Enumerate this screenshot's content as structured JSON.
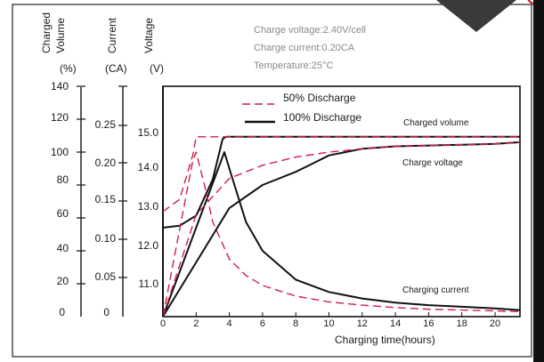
{
  "chart_data": {
    "type": "line",
    "xlabel": "Charging time(hours)",
    "x_ticks": [
      "0",
      "2",
      "4",
      "6",
      "8",
      "10",
      "12",
      "14",
      "16",
      "18",
      "20"
    ],
    "xlim": [
      0,
      21.5
    ],
    "axes": [
      {
        "id": "volume",
        "header_top": "Charged",
        "header_bottom": "Volume",
        "unit": "(%)",
        "ticks": [
          "140",
          "120",
          "100",
          "80",
          "60",
          "40",
          "20",
          "0"
        ],
        "range": [
          0,
          140
        ]
      },
      {
        "id": "current",
        "header": "Current",
        "unit": "(CA)",
        "ticks": [
          "0.25",
          "0.20",
          "0.15",
          "0.10",
          "0.05",
          "0"
        ],
        "range": [
          0,
          0.28
        ]
      },
      {
        "id": "voltage",
        "header": "Voltage",
        "unit": "(V)",
        "ticks": [
          "15.0",
          "14.0",
          "13.0",
          "12.0",
          "11.0"
        ],
        "range": [
          9.9,
          15.6
        ]
      }
    ],
    "notes": [
      "Charge voltage:2.40V/cell",
      "Charge current:0.20CA",
      "Temperature:25°C"
    ],
    "legend": [
      {
        "label": "50% Discharge",
        "style": "dashed",
        "color": "#d01f4a"
      },
      {
        "label": "100% Discharge",
        "style": "solid",
        "color": "#111111"
      }
    ],
    "curve_labels": [
      "Charged volume",
      "Charge voltage",
      "Charging current"
    ],
    "series": [
      {
        "key": "v100",
        "axis": "voltage",
        "style": "solid",
        "x": [
          0,
          1,
          2,
          3,
          3.6,
          3.8,
          22
        ],
        "y": [
          12.1,
          12.15,
          12.4,
          13.3,
          14.3,
          14.35,
          14.35
        ]
      },
      {
        "key": "v50",
        "axis": "voltage",
        "style": "dashed",
        "x": [
          0,
          1,
          1.8,
          2,
          2.5,
          22
        ],
        "y": [
          12.5,
          12.8,
          13.9,
          14.35,
          14.35,
          14.35
        ]
      },
      {
        "key": "c100",
        "axis": "current",
        "style": "solid",
        "x": [
          0,
          3.7,
          4,
          5,
          6,
          8,
          10,
          12,
          14,
          16,
          18,
          20,
          22
        ],
        "y": [
          0,
          0.2,
          0.18,
          0.115,
          0.08,
          0.045,
          0.03,
          0.022,
          0.017,
          0.014,
          0.012,
          0.01,
          0.008
        ]
      },
      {
        "key": "c50",
        "axis": "current",
        "style": "dashed",
        "x": [
          0,
          1.8,
          2,
          2.5,
          3,
          4,
          5,
          6,
          8,
          10,
          12,
          14,
          16,
          18,
          20,
          22
        ],
        "y": [
          0,
          0.19,
          0.2,
          0.16,
          0.115,
          0.07,
          0.05,
          0.038,
          0.025,
          0.018,
          0.014,
          0.011,
          0.009,
          0.008,
          0.007,
          0.006
        ]
      },
      {
        "key": "q100",
        "axis": "volume",
        "style": "solid",
        "x": [
          0,
          4,
          6,
          8,
          9,
          10,
          12,
          14,
          16,
          18,
          20,
          22
        ],
        "y": [
          0,
          66,
          80,
          88,
          93,
          98,
          102,
          103.5,
          104,
          104.5,
          105,
          106
        ]
      },
      {
        "key": "q50",
        "axis": "volume",
        "style": "dashed",
        "x": [
          0,
          2,
          4,
          6,
          8,
          10,
          12,
          14,
          16,
          18,
          20,
          22
        ],
        "y": [
          0,
          62,
          84,
          92,
          97,
          100,
          102,
          103.5,
          104,
          104.5,
          105,
          106
        ]
      }
    ]
  }
}
